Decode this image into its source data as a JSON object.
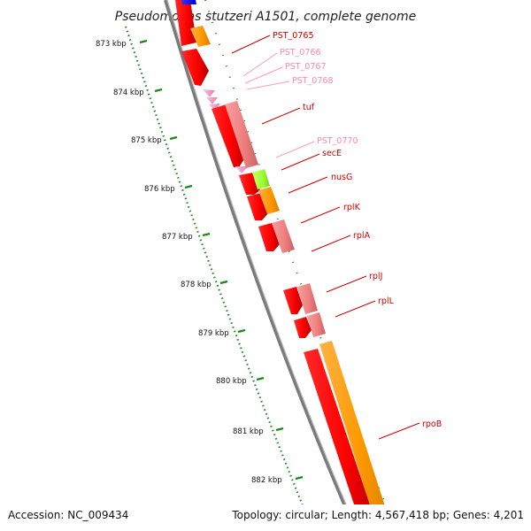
{
  "title": "Pseudomonas stutzeri A1501, complete genome",
  "accession": "Accession: NC_009434",
  "summary": "Topology: circular; Length: 4,567,418 bp; Genes: 4,201",
  "ticks": [
    "873 kbp",
    "874 kbp",
    "875 kbp",
    "876 kbp",
    "877 kbp",
    "878 kbp",
    "879 kbp",
    "880 kbp",
    "881 kbp",
    "882 kbp"
  ],
  "genes": [
    {
      "name": "PST_0765",
      "color": "#cc0000"
    },
    {
      "name": "PST_0766",
      "color": "#ff99bb"
    },
    {
      "name": "PST_0767",
      "color": "#ff99bb"
    },
    {
      "name": "PST_0768",
      "color": "#ff99bb"
    },
    {
      "name": "tuf",
      "color": "#cc0000"
    },
    {
      "name": "PST_0770",
      "color": "#ff99bb"
    },
    {
      "name": "secE",
      "color": "#cc0000"
    },
    {
      "name": "nusG",
      "color": "#cc0000"
    },
    {
      "name": "rplK",
      "color": "#cc0000"
    },
    {
      "name": "rplA",
      "color": "#cc0000"
    },
    {
      "name": "rplJ",
      "color": "#cc0000"
    },
    {
      "name": "rplL",
      "color": "#cc0000"
    },
    {
      "name": "rpoB",
      "color": "#cc0000"
    }
  ],
  "colors": {
    "cds_red": "#ff0000",
    "cog_pink": "#f08080",
    "cog_orange": "#ff9900",
    "cog_green": "#99ff33",
    "cog_blue": "#0000ff",
    "backbone": "#888888",
    "gc_skew": "#339933"
  }
}
